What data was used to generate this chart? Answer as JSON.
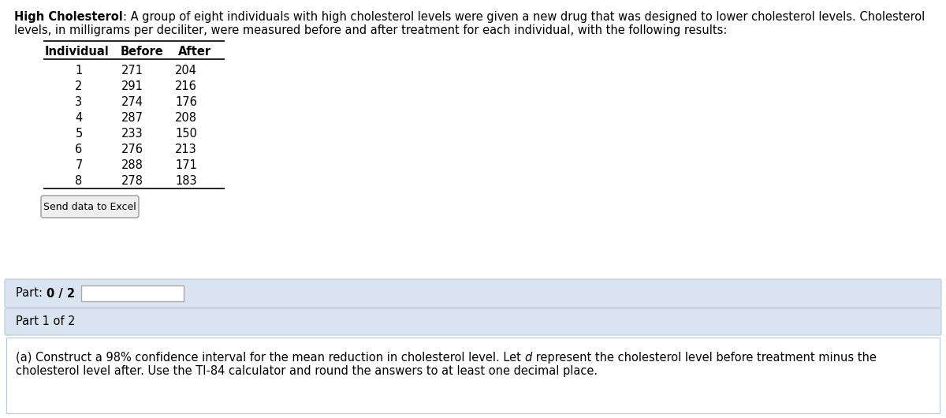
{
  "title_bold": "High Cholesterol",
  "title_rest_line1": ": A group of eight individuals with high cholesterol levels were given a new drug that was designed to lower cholesterol levels. Cholesterol",
  "title_rest_line2": "levels, in milligrams per deciliter, were measured before and after treatment for each individual, with the following results:",
  "table_headers": [
    "Individual",
    "Before",
    "After"
  ],
  "table_data": [
    [
      1,
      271,
      204
    ],
    [
      2,
      291,
      216
    ],
    [
      3,
      274,
      176
    ],
    [
      4,
      287,
      208
    ],
    [
      5,
      233,
      150
    ],
    [
      6,
      276,
      213
    ],
    [
      7,
      288,
      171
    ],
    [
      8,
      278,
      183
    ]
  ],
  "send_button_text": "Send data to Excel",
  "part_label": "Part: ",
  "part_bold": "0 / 2",
  "part1_label": "Part 1 of 2",
  "part_a_pre": "(a) Construct a 98% confidence interval for the mean reduction in cholesterol level. Let ",
  "part_a_italic": "d",
  "part_a_post_line1": " represent the cholesterol level before treatment minus the",
  "part_a_line2": "cholesterol level after. Use the TI-84 calculator and round the answers to at least one decimal place.",
  "bg_color": "#ffffff",
  "part_bar_bg": "#d9e4f0",
  "part1_bg": "#d9e4f0",
  "border_color": "#b8c8d8",
  "text_color": "#000000",
  "font_size_body": 10.5,
  "font_size_table": 10.5
}
